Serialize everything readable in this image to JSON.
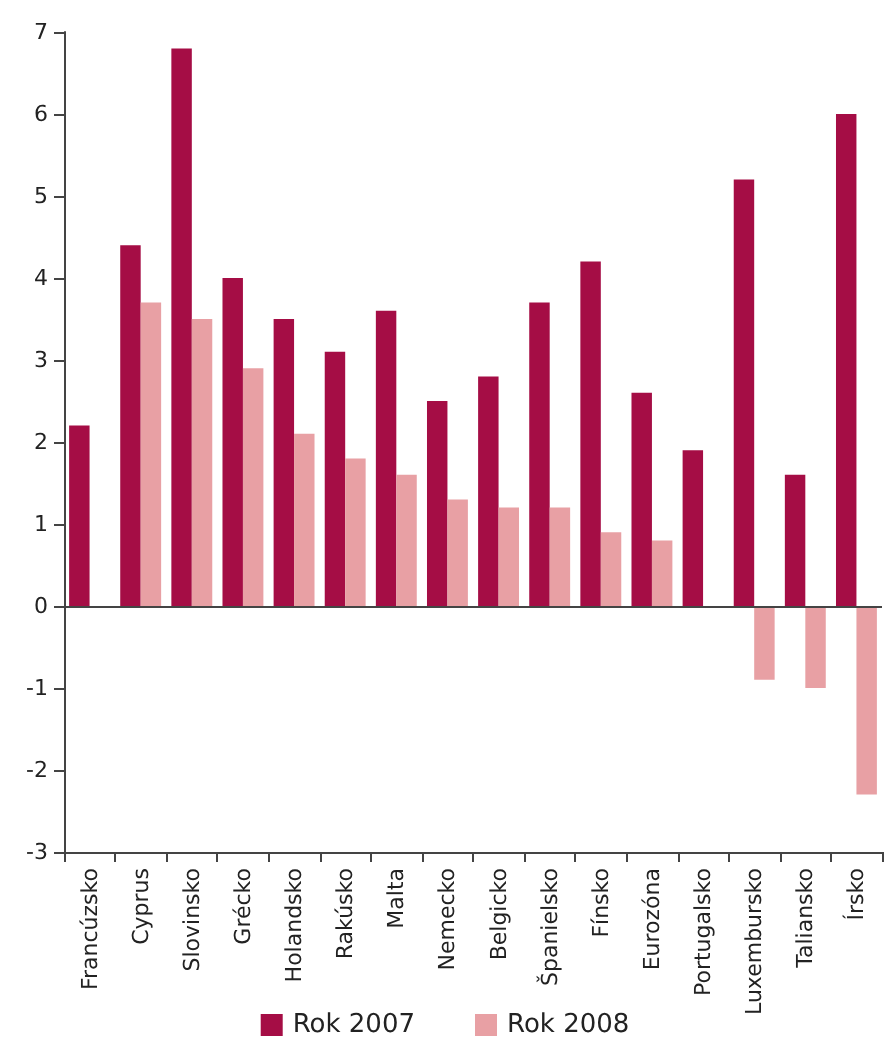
{
  "chart_data": {
    "type": "bar",
    "categories": [
      "Francúzsko",
      "Cyprus",
      "Slovinsko",
      "Grécko",
      "Holandsko",
      "Rakúsko",
      "Malta",
      "Nemecko",
      "Belgicko",
      "Španielsko",
      "Fínsko",
      "Eurozóna",
      "Portugalsko",
      "Luxembursko",
      "Taliansko",
      "Írsko"
    ],
    "series": [
      {
        "name": "Rok 2007",
        "color": "#a50d45",
        "values": [
          2.2,
          4.4,
          6.8,
          4.0,
          3.5,
          3.1,
          3.6,
          2.5,
          2.8,
          3.7,
          4.2,
          2.6,
          1.9,
          5.2,
          1.6,
          6.0
        ]
      },
      {
        "name": "Rok 2008",
        "color": "#e8a0a4",
        "values": [
          null,
          3.7,
          3.5,
          2.9,
          2.1,
          1.8,
          1.6,
          1.3,
          1.2,
          1.2,
          0.9,
          0.8,
          null,
          -0.9,
          -1.0,
          -2.3
        ]
      }
    ],
    "ylim": [
      -3,
      7
    ],
    "yticks": [
      -3,
      -2,
      -1,
      0,
      1,
      2,
      3,
      4,
      5,
      6,
      7
    ],
    "grid": false,
    "ref_lines": [
      {
        "axis": "y",
        "value": 0,
        "color": "#444444",
        "line_style": "solid"
      }
    ],
    "legend": "bottom"
  }
}
